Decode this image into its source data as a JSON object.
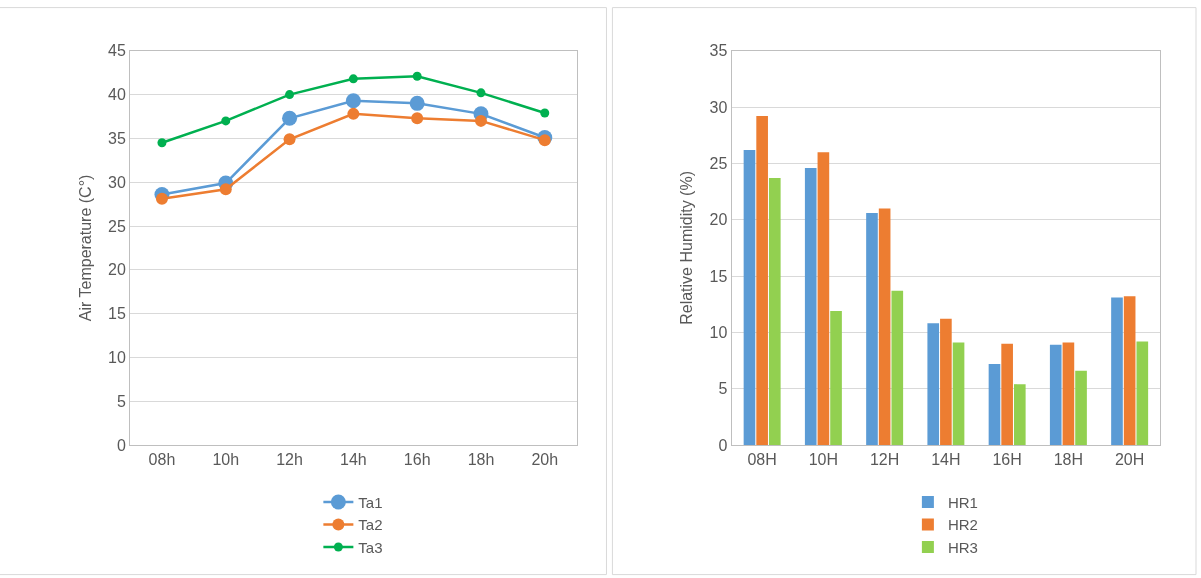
{
  "chart_data": [
    {
      "type": "line",
      "ylabel": "Air Temperature (C°)",
      "categories": [
        "08h",
        "10h",
        "12h",
        "14h",
        "16h",
        "18h",
        "20h"
      ],
      "ylim": [
        0,
        45
      ],
      "yticks": [
        0,
        5,
        10,
        15,
        20,
        25,
        30,
        35,
        40,
        45
      ],
      "grid": "y",
      "legend": "bottom",
      "marker": "circle",
      "series": [
        {
          "name": "Ta1",
          "color": "#5b9bd5",
          "values": [
            28.6,
            29.9,
            37.3,
            39.3,
            39.0,
            37.8,
            35.1
          ]
        },
        {
          "name": "Ta2",
          "color": "#ed7d31",
          "values": [
            28.1,
            29.2,
            34.9,
            37.8,
            37.3,
            37.0,
            34.8
          ]
        },
        {
          "name": "Ta3",
          "color": "#00b050",
          "values": [
            34.5,
            37.0,
            40.0,
            41.8,
            42.1,
            40.2,
            37.9
          ]
        }
      ]
    },
    {
      "type": "bar",
      "ylabel": "Relative Humidity (%)",
      "categories": [
        "08H",
        "10H",
        "12H",
        "14H",
        "16H",
        "18H",
        "20H"
      ],
      "ylim": [
        0,
        35
      ],
      "yticks": [
        0,
        5,
        10,
        15,
        20,
        25,
        30,
        35
      ],
      "grid": "y",
      "legend": "bottom",
      "series": [
        {
          "name": "HR1",
          "color": "#5b9bd5",
          "values": [
            26.2,
            24.6,
            20.6,
            10.8,
            7.2,
            8.9,
            13.1
          ]
        },
        {
          "name": "HR2",
          "color": "#ed7d31",
          "values": [
            29.2,
            26.0,
            21.0,
            11.2,
            9.0,
            9.1,
            13.2
          ]
        },
        {
          "name": "HR3",
          "color": "#92d050",
          "values": [
            23.7,
            11.9,
            13.7,
            9.1,
            5.4,
            6.6,
            9.2
          ]
        }
      ]
    }
  ]
}
